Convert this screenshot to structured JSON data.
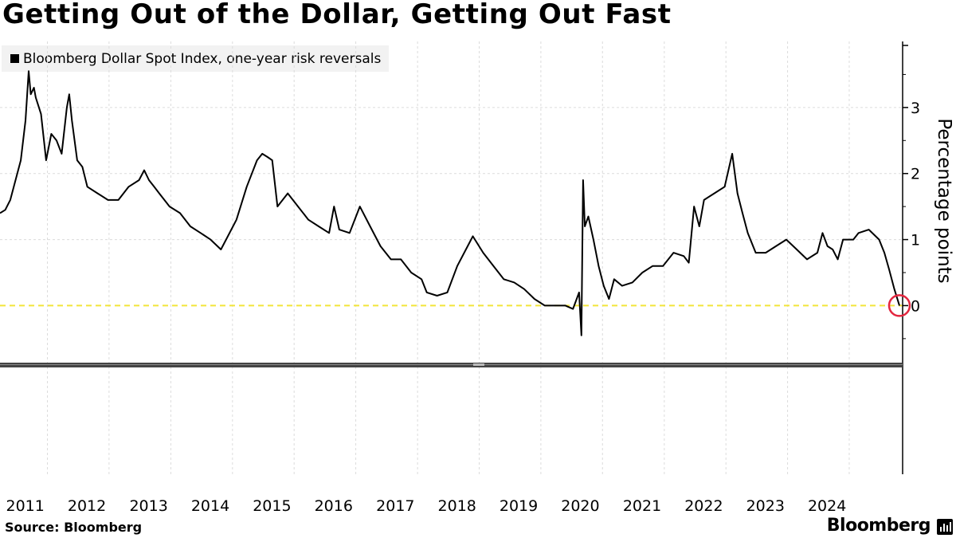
{
  "title": "Getting Out of the Dollar, Getting Out Fast",
  "legend": {
    "label": "Bloomberg Dollar Spot Index, one-year risk reversals"
  },
  "source": "Source: Bloomberg",
  "brand": "Bloomberg",
  "colors": {
    "line": "#000000",
    "zero_line": "#f2e53a",
    "highlight_circle": "#e3263f",
    "grid": "#dcdcdc"
  },
  "chart_data": {
    "type": "line",
    "title": "Getting Out of the Dollar, Getting Out Fast",
    "ylabel": "Percentage points",
    "xlabel": "",
    "x_ticks": [
      "2011",
      "2012",
      "2013",
      "2014",
      "2015",
      "2016",
      "2017",
      "2018",
      "2019",
      "2020",
      "2021",
      "2022",
      "2023",
      "2024"
    ],
    "y_ticks": [
      0,
      1,
      2,
      3
    ],
    "xlim": [
      "2010-10-01",
      "2025-05-20"
    ],
    "ylim": [
      -0.9,
      4.0
    ],
    "grid": true,
    "legend_position": "top-left",
    "reference_line": {
      "y": 0,
      "style": "dashed"
    },
    "highlight": {
      "x": "2025-05-01",
      "y": 0.0,
      "shape": "circle"
    },
    "series": [
      {
        "name": "Bloomberg Dollar Spot Index, one-year risk reversals",
        "points": [
          [
            "2010-10-01",
            1.4
          ],
          [
            "2010-11-01",
            1.45
          ],
          [
            "2010-12-01",
            1.6
          ],
          [
            "2011-01-01",
            1.9
          ],
          [
            "2011-02-01",
            2.2
          ],
          [
            "2011-03-01",
            2.8
          ],
          [
            "2011-03-20",
            3.55
          ],
          [
            "2011-04-01",
            3.2
          ],
          [
            "2011-04-20",
            3.3
          ],
          [
            "2011-05-01",
            3.15
          ],
          [
            "2011-06-01",
            2.9
          ],
          [
            "2011-07-01",
            2.2
          ],
          [
            "2011-08-01",
            2.6
          ],
          [
            "2011-09-01",
            2.5
          ],
          [
            "2011-10-01",
            2.3
          ],
          [
            "2011-11-01",
            3.0
          ],
          [
            "2011-11-15",
            3.2
          ],
          [
            "2011-12-01",
            2.8
          ],
          [
            "2012-01-01",
            2.2
          ],
          [
            "2012-02-01",
            2.1
          ],
          [
            "2012-03-01",
            1.8
          ],
          [
            "2012-05-01",
            1.7
          ],
          [
            "2012-07-01",
            1.6
          ],
          [
            "2012-09-01",
            1.6
          ],
          [
            "2012-11-01",
            1.8
          ],
          [
            "2013-01-01",
            1.9
          ],
          [
            "2013-02-01",
            2.05
          ],
          [
            "2013-03-01",
            1.9
          ],
          [
            "2013-04-01",
            1.8
          ],
          [
            "2013-05-01",
            1.7
          ],
          [
            "2013-07-01",
            1.5
          ],
          [
            "2013-09-01",
            1.4
          ],
          [
            "2013-11-01",
            1.2
          ],
          [
            "2014-01-01",
            1.1
          ],
          [
            "2014-03-01",
            1.0
          ],
          [
            "2014-05-01",
            0.85
          ],
          [
            "2014-06-01",
            1.0
          ],
          [
            "2014-08-01",
            1.3
          ],
          [
            "2014-10-01",
            1.8
          ],
          [
            "2014-12-01",
            2.2
          ],
          [
            "2015-01-01",
            2.3
          ],
          [
            "2015-02-01",
            2.25
          ],
          [
            "2015-03-01",
            2.2
          ],
          [
            "2015-04-01",
            1.5
          ],
          [
            "2015-06-01",
            1.7
          ],
          [
            "2015-08-01",
            1.5
          ],
          [
            "2015-10-01",
            1.3
          ],
          [
            "2015-12-01",
            1.2
          ],
          [
            "2016-02-01",
            1.1
          ],
          [
            "2016-03-01",
            1.5
          ],
          [
            "2016-04-01",
            1.15
          ],
          [
            "2016-06-01",
            1.1
          ],
          [
            "2016-08-01",
            1.5
          ],
          [
            "2016-10-01",
            1.2
          ],
          [
            "2016-12-01",
            0.9
          ],
          [
            "2017-02-01",
            0.7
          ],
          [
            "2017-04-01",
            0.7
          ],
          [
            "2017-06-01",
            0.5
          ],
          [
            "2017-08-01",
            0.4
          ],
          [
            "2017-09-01",
            0.2
          ],
          [
            "2017-11-01",
            0.15
          ],
          [
            "2018-01-01",
            0.2
          ],
          [
            "2018-03-01",
            0.6
          ],
          [
            "2018-05-01",
            0.9
          ],
          [
            "2018-06-01",
            1.05
          ],
          [
            "2018-08-01",
            0.8
          ],
          [
            "2018-10-01",
            0.6
          ],
          [
            "2018-12-01",
            0.4
          ],
          [
            "2019-02-01",
            0.35
          ],
          [
            "2019-04-01",
            0.25
          ],
          [
            "2019-06-01",
            0.1
          ],
          [
            "2019-08-01",
            0.0
          ],
          [
            "2019-10-01",
            0.0
          ],
          [
            "2019-12-01",
            0.0
          ],
          [
            "2020-01-15",
            -0.05
          ],
          [
            "2020-02-20",
            0.2
          ],
          [
            "2020-03-05",
            -0.45
          ],
          [
            "2020-03-10",
            0.8
          ],
          [
            "2020-03-15",
            1.9
          ],
          [
            "2020-03-25",
            1.2
          ],
          [
            "2020-04-15",
            1.35
          ],
          [
            "2020-05-15",
            1.0
          ],
          [
            "2020-06-15",
            0.6
          ],
          [
            "2020-07-15",
            0.3
          ],
          [
            "2020-08-15",
            0.1
          ],
          [
            "2020-09-15",
            0.4
          ],
          [
            "2020-11-01",
            0.3
          ],
          [
            "2021-01-01",
            0.35
          ],
          [
            "2021-03-01",
            0.5
          ],
          [
            "2021-05-01",
            0.6
          ],
          [
            "2021-07-01",
            0.6
          ],
          [
            "2021-09-01",
            0.8
          ],
          [
            "2021-11-01",
            0.75
          ],
          [
            "2021-12-01",
            0.65
          ],
          [
            "2022-01-01",
            1.5
          ],
          [
            "2022-02-01",
            1.2
          ],
          [
            "2022-03-01",
            1.6
          ],
          [
            "2022-05-01",
            1.7
          ],
          [
            "2022-07-01",
            1.8
          ],
          [
            "2022-08-15",
            2.3
          ],
          [
            "2022-09-15",
            1.7
          ],
          [
            "2022-10-15",
            1.4
          ],
          [
            "2022-11-15",
            1.1
          ],
          [
            "2023-01-01",
            0.8
          ],
          [
            "2023-03-01",
            0.8
          ],
          [
            "2023-05-01",
            0.9
          ],
          [
            "2023-07-01",
            1.0
          ],
          [
            "2023-09-01",
            0.85
          ],
          [
            "2023-11-01",
            0.7
          ],
          [
            "2024-01-01",
            0.8
          ],
          [
            "2024-02-01",
            1.1
          ],
          [
            "2024-03-01",
            0.9
          ],
          [
            "2024-04-01",
            0.85
          ],
          [
            "2024-05-01",
            0.7
          ],
          [
            "2024-06-01",
            1.0
          ],
          [
            "2024-08-01",
            1.0
          ],
          [
            "2024-09-01",
            1.1
          ],
          [
            "2024-11-01",
            1.15
          ],
          [
            "2025-01-01",
            1.0
          ],
          [
            "2025-02-01",
            0.8
          ],
          [
            "2025-03-01",
            0.55
          ],
          [
            "2025-04-01",
            0.25
          ],
          [
            "2025-05-01",
            0.0
          ]
        ]
      }
    ]
  }
}
